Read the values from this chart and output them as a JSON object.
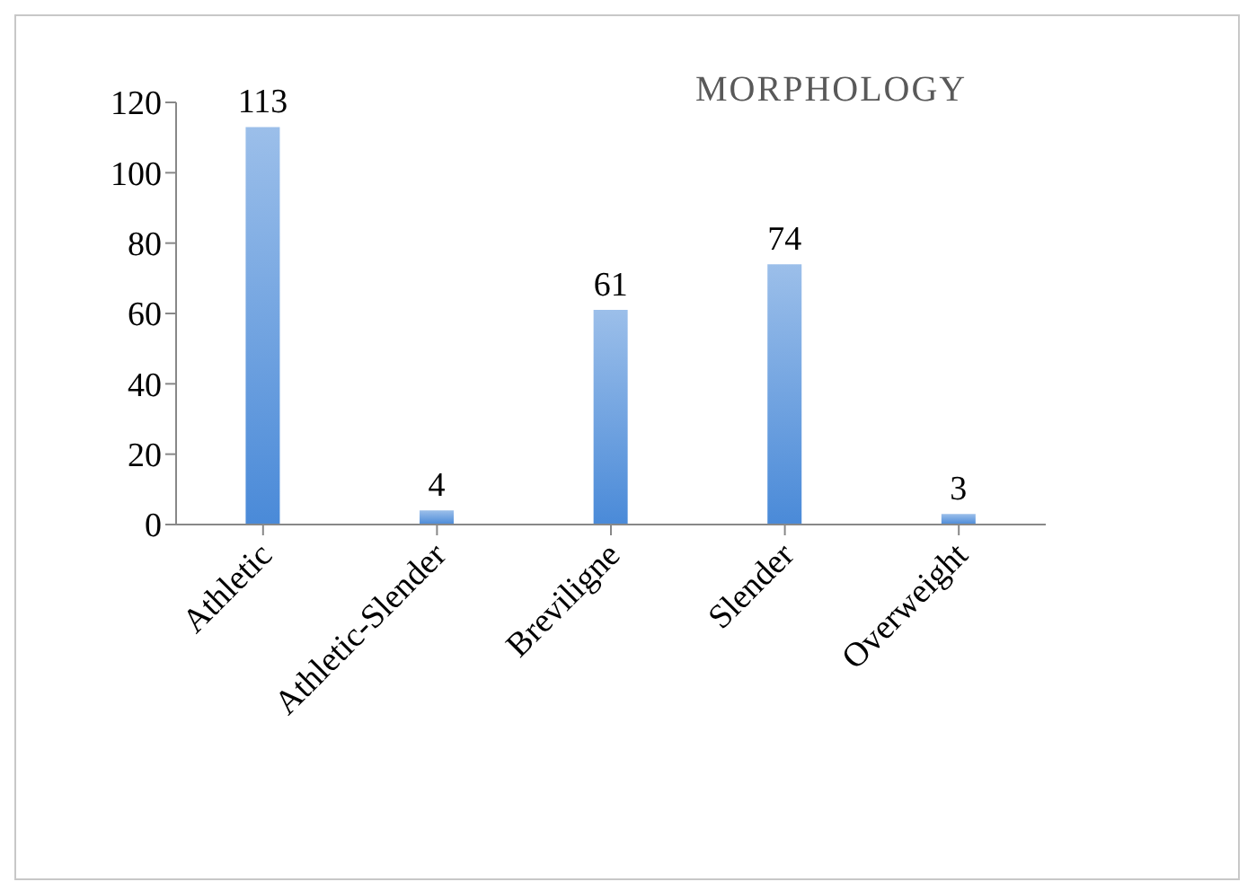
{
  "chart_data": {
    "type": "bar",
    "title": "MORPHOLOGY",
    "categories": [
      "Athletic",
      "Athletic-Slender",
      "Breviligne",
      "Slender",
      "Overweight"
    ],
    "values": [
      113,
      4,
      61,
      74,
      3
    ],
    "color": "#4a8ad8",
    "ylim": [
      0,
      120
    ],
    "yticks": [
      0,
      20,
      40,
      60,
      80,
      100,
      120
    ],
    "data_labels": true,
    "grid": false,
    "legend": false
  }
}
